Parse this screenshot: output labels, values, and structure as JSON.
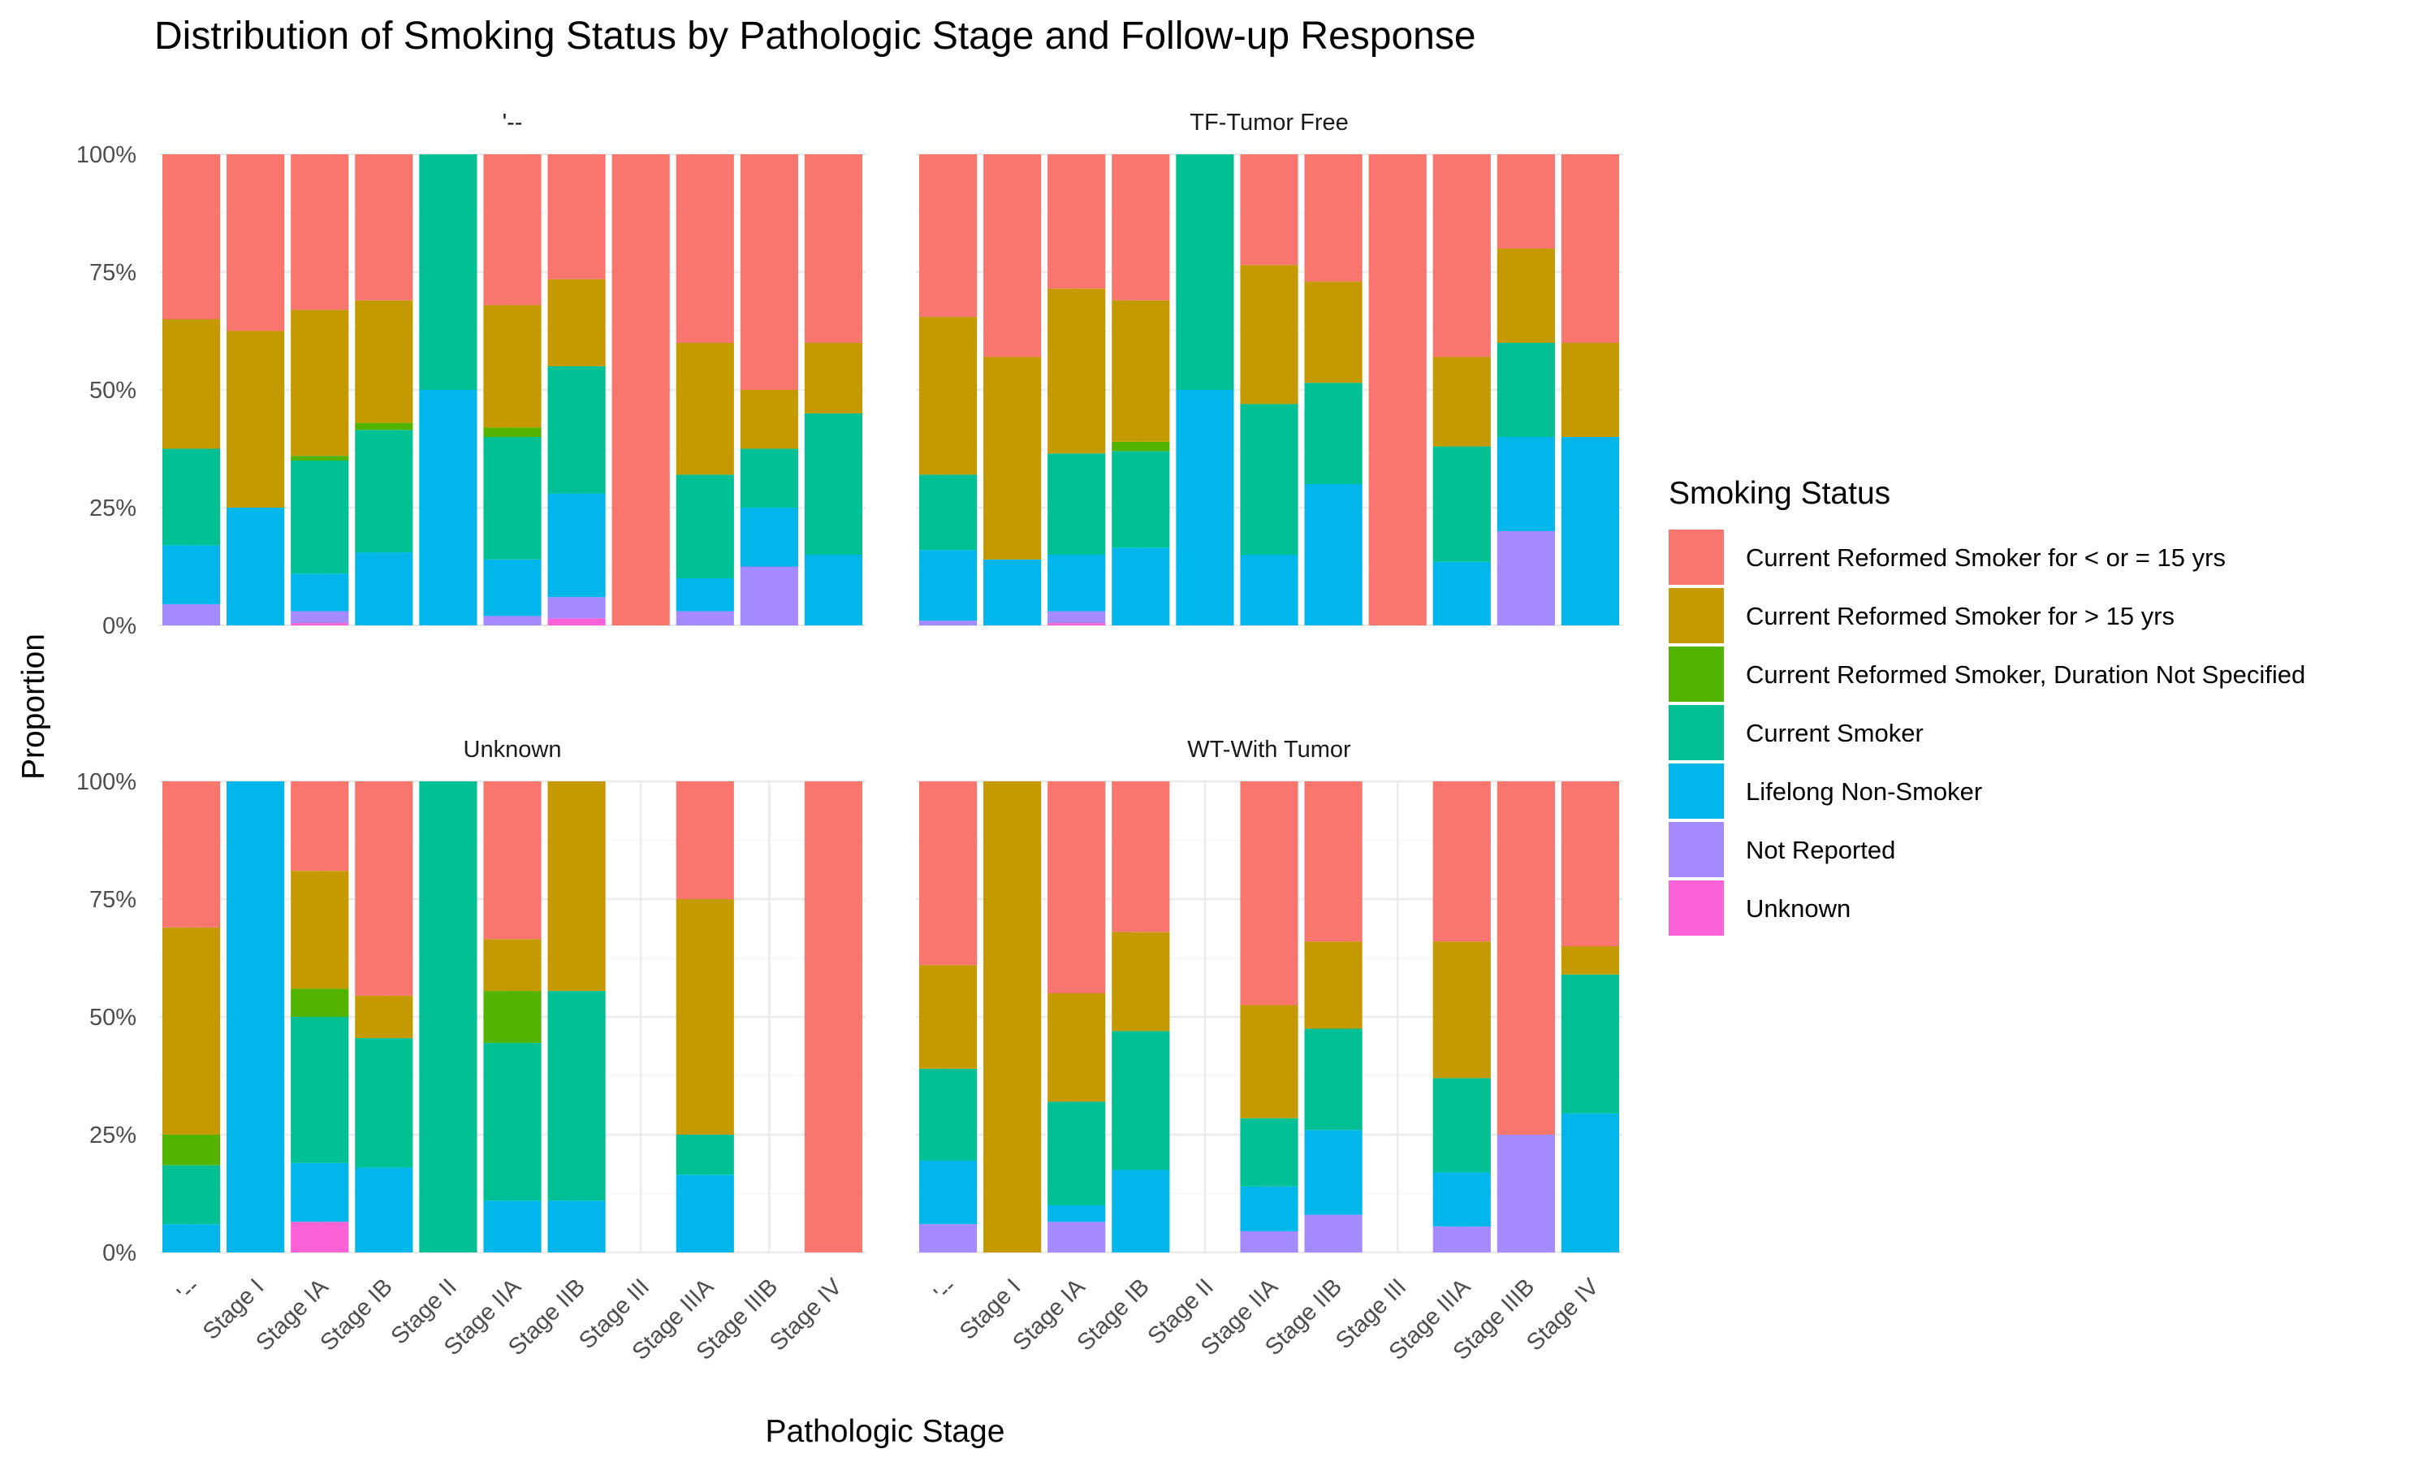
{
  "chart_data": {
    "type": "bar",
    "stacked": true,
    "position": "fill",
    "title": "Distribution of Smoking Status by Pathologic Stage and Follow-up Response",
    "xlabel": "Pathologic Stage",
    "ylabel": "Proportion",
    "ylim": [
      0,
      1
    ],
    "y_ticks": [
      "0%",
      "25%",
      "50%",
      "75%",
      "100%"
    ],
    "categories": [
      "'--",
      "Stage I",
      "Stage IA",
      "Stage IB",
      "Stage II",
      "Stage IIA",
      "Stage IIB",
      "Stage III",
      "Stage IIIA",
      "Stage IIIB",
      "Stage IV"
    ],
    "legend": {
      "title": "Smoking Status",
      "position": "right",
      "items": [
        {
          "label": "Current Reformed Smoker for < or = 15 yrs",
          "color": "#F8766D"
        },
        {
          "label": "Current Reformed Smoker for > 15 yrs",
          "color": "#C49A00"
        },
        {
          "label": "Current Reformed Smoker, Duration Not Specified",
          "color": "#53B400"
        },
        {
          "label": "Current Smoker",
          "color": "#00C094"
        },
        {
          "label": "Lifelong Non-Smoker",
          "color": "#00B6EB"
        },
        {
          "label": "Not Reported",
          "color": "#A58AFF"
        },
        {
          "label": "Unknown",
          "color": "#FB61D7"
        }
      ]
    },
    "stack_order_bottom_to_top": [
      "Unknown",
      "Not Reported",
      "Lifelong Non-Smoker",
      "Current Smoker",
      "Current Reformed Smoker, Duration Not Specified",
      "Current Reformed Smoker for > 15 yrs",
      "Current Reformed Smoker for < or = 15 yrs"
    ],
    "facets": [
      {
        "name": "'--",
        "series": [
          {
            "name": "Current Reformed Smoker for < or = 15 yrs",
            "values": [
              0.35,
              0.375,
              0.33,
              0.31,
              0,
              0.32,
              0.265,
              1.0,
              0.4,
              0.5,
              0.4
            ]
          },
          {
            "name": "Current Reformed Smoker for > 15 yrs",
            "values": [
              0.275,
              0.375,
              0.31,
              0.26,
              0,
              0.26,
              0.185,
              0,
              0.28,
              0.125,
              0.15
            ]
          },
          {
            "name": "Current Reformed Smoker, Duration Not Specified",
            "values": [
              0,
              0,
              0.01,
              0.015,
              0,
              0.02,
              0,
              0,
              0,
              0,
              0
            ]
          },
          {
            "name": "Current Smoker",
            "values": [
              0.205,
              0,
              0.24,
              0.26,
              0.5,
              0.26,
              0.27,
              0,
              0.22,
              0.125,
              0.3
            ]
          },
          {
            "name": "Lifelong Non-Smoker",
            "values": [
              0.125,
              0.25,
              0.08,
              0.155,
              0.5,
              0.12,
              0.22,
              0,
              0.07,
              0.125,
              0.15
            ]
          },
          {
            "name": "Not Reported",
            "values": [
              0.045,
              0,
              0.025,
              0,
              0,
              0.02,
              0.045,
              0,
              0.03,
              0.125,
              0
            ]
          },
          {
            "name": "Unknown",
            "values": [
              0,
              0,
              0.005,
              0,
              0,
              0,
              0.015,
              0,
              0,
              0,
              0
            ]
          }
        ]
      },
      {
        "name": "TF-Tumor Free",
        "series": [
          {
            "name": "Current Reformed Smoker for < or = 15 yrs",
            "values": [
              0.345,
              0.43,
              0.285,
              0.31,
              0,
              0.235,
              0.27,
              1.0,
              0.43,
              0.2,
              0.4
            ]
          },
          {
            "name": "Current Reformed Smoker for > 15 yrs",
            "values": [
              0.335,
              0.43,
              0.35,
              0.3,
              0,
              0.295,
              0.215,
              0,
              0.19,
              0.2,
              0.2
            ]
          },
          {
            "name": "Current Reformed Smoker, Duration Not Specified",
            "values": [
              0,
              0,
              0,
              0.02,
              0,
              0,
              0,
              0,
              0,
              0,
              0
            ]
          },
          {
            "name": "Current Smoker",
            "values": [
              0.16,
              0,
              0.215,
              0.205,
              0.5,
              0.32,
              0.215,
              0,
              0.245,
              0.2,
              0
            ]
          },
          {
            "name": "Lifelong Non-Smoker",
            "values": [
              0.15,
              0.14,
              0.12,
              0.165,
              0.5,
              0.15,
              0.3,
              0,
              0.135,
              0.2,
              0.4
            ]
          },
          {
            "name": "Not Reported",
            "values": [
              0.01,
              0,
              0.025,
              0,
              0,
              0,
              0,
              0,
              0,
              0.2,
              0
            ]
          },
          {
            "name": "Unknown",
            "values": [
              0,
              0,
              0.005,
              0,
              0,
              0,
              0,
              0,
              0,
              0,
              0
            ]
          }
        ]
      },
      {
        "name": "Unknown",
        "series": [
          {
            "name": "Current Reformed Smoker for < or = 15 yrs",
            "values": [
              0.31,
              0,
              0.19,
              0.455,
              0,
              0.335,
              0,
              0,
              0.25,
              0,
              1.0
            ]
          },
          {
            "name": "Current Reformed Smoker for > 15 yrs",
            "values": [
              0.44,
              0,
              0.25,
              0.09,
              0,
              0.11,
              0.445,
              0,
              0.5,
              0,
              0
            ]
          },
          {
            "name": "Current Reformed Smoker, Duration Not Specified",
            "values": [
              0.065,
              0,
              0.06,
              0,
              0,
              0.11,
              0,
              0,
              0,
              0,
              0
            ]
          },
          {
            "name": "Current Smoker",
            "values": [
              0.125,
              0,
              0.31,
              0.275,
              1.0,
              0.335,
              0.445,
              0,
              0.085,
              0,
              0
            ]
          },
          {
            "name": "Lifelong Non-Smoker",
            "values": [
              0.06,
              1.0,
              0.125,
              0.18,
              0,
              0.11,
              0.11,
              0,
              0.165,
              0,
              0
            ]
          },
          {
            "name": "Not Reported",
            "values": [
              0,
              0,
              0,
              0,
              0,
              0,
              0,
              0,
              0,
              0,
              0
            ]
          },
          {
            "name": "Unknown",
            "values": [
              0,
              0,
              0.065,
              0,
              0,
              0,
              0,
              0,
              0,
              0,
              0
            ]
          }
        ]
      },
      {
        "name": "WT-With Tumor",
        "series": [
          {
            "name": "Current Reformed Smoker for < or = 15 yrs",
            "values": [
              0.39,
              0,
              0.45,
              0.32,
              0,
              0.475,
              0.34,
              0,
              0.34,
              0.75,
              0.35
            ]
          },
          {
            "name": "Current Reformed Smoker for > 15 yrs",
            "values": [
              0.22,
              1.0,
              0.23,
              0.21,
              0,
              0.24,
              0.185,
              0,
              0.29,
              0,
              0.06
            ]
          },
          {
            "name": "Current Reformed Smoker, Duration Not Specified",
            "values": [
              0,
              0,
              0,
              0,
              0,
              0,
              0,
              0,
              0,
              0,
              0
            ]
          },
          {
            "name": "Current Smoker",
            "values": [
              0.195,
              0,
              0.22,
              0.295,
              0,
              0.145,
              0.215,
              0,
              0.2,
              0,
              0.295
            ]
          },
          {
            "name": "Lifelong Non-Smoker",
            "values": [
              0.135,
              0,
              0.035,
              0.175,
              0,
              0.095,
              0.18,
              0,
              0.115,
              0,
              0.295
            ]
          },
          {
            "name": "Not Reported",
            "values": [
              0.06,
              0,
              0.065,
              0,
              0,
              0.045,
              0.08,
              0,
              0.055,
              0.25,
              0
            ]
          },
          {
            "name": "Unknown",
            "values": [
              0,
              0,
              0,
              0,
              0,
              0,
              0,
              0,
              0,
              0,
              0
            ]
          }
        ]
      }
    ]
  }
}
